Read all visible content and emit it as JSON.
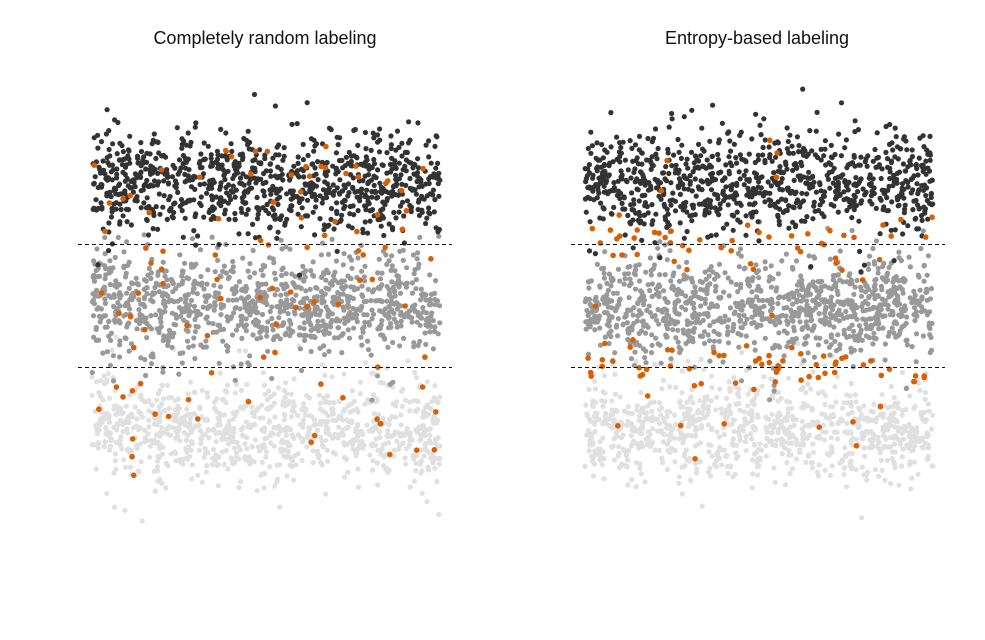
{
  "chart_data": [
    {
      "type": "scatter",
      "title": "Completely random labeling",
      "xlabel": "",
      "ylabel": "",
      "grid": false,
      "axes_visible": false,
      "legend": "none",
      "xlim": [
        0,
        1
      ],
      "ylim": [
        0,
        1
      ],
      "thresholds": [
        0.333,
        0.667
      ],
      "threshold_style": "dashed",
      "groups": [
        {
          "class": "top",
          "color": "#333333",
          "approx_count": 900,
          "y_range": [
            0.667,
            1.0
          ]
        },
        {
          "class": "middle",
          "color": "#999999",
          "approx_count": 1000,
          "y_range": [
            0.333,
            0.667
          ]
        },
        {
          "class": "bottom",
          "color": "#e0e0e0",
          "approx_count": 900,
          "y_range": [
            0.0,
            0.333
          ]
        }
      ],
      "labeled_points": {
        "color": "#d95f02",
        "approx_count": 100,
        "placement": "uniform",
        "sample": [
          {
            "x": 0.05,
            "y": 0.78
          },
          {
            "x": 0.11,
            "y": 0.8
          },
          {
            "x": 0.2,
            "y": 0.87
          },
          {
            "x": 0.31,
            "y": 0.85
          },
          {
            "x": 0.47,
            "y": 0.92
          },
          {
            "x": 0.6,
            "y": 0.81
          },
          {
            "x": 0.73,
            "y": 0.86
          },
          {
            "x": 0.85,
            "y": 0.84
          },
          {
            "x": 0.2,
            "y": 0.6
          },
          {
            "x": 0.37,
            "y": 0.52
          },
          {
            "x": 0.53,
            "y": 0.45
          },
          {
            "x": 0.77,
            "y": 0.57
          },
          {
            "x": 0.9,
            "y": 0.5
          },
          {
            "x": 0.07,
            "y": 0.28
          },
          {
            "x": 0.22,
            "y": 0.2
          },
          {
            "x": 0.45,
            "y": 0.24
          },
          {
            "x": 0.63,
            "y": 0.13
          },
          {
            "x": 0.83,
            "y": 0.18
          },
          {
            "x": 0.12,
            "y": 0.04
          },
          {
            "x": 0.95,
            "y": 0.28
          }
        ]
      }
    },
    {
      "type": "scatter",
      "title": "Entropy-based labeling",
      "xlabel": "",
      "ylabel": "",
      "grid": false,
      "axes_visible": false,
      "legend": "none",
      "xlim": [
        0,
        1
      ],
      "ylim": [
        0,
        1
      ],
      "thresholds": [
        0.333,
        0.667
      ],
      "threshold_style": "dashed",
      "groups": [
        {
          "class": "top",
          "color": "#333333",
          "approx_count": 900,
          "y_range": [
            0.667,
            1.0
          ]
        },
        {
          "class": "middle",
          "color": "#999999",
          "approx_count": 1000,
          "y_range": [
            0.333,
            0.667
          ]
        },
        {
          "class": "bottom",
          "color": "#e0e0e0",
          "approx_count": 900,
          "y_range": [
            0.0,
            0.333
          ]
        }
      ],
      "labeled_points": {
        "color": "#d95f02",
        "approx_count": 120,
        "placement": "concentrated near thresholds",
        "sample": [
          {
            "x": 0.1,
            "y": 0.69
          },
          {
            "x": 0.2,
            "y": 0.7
          },
          {
            "x": 0.33,
            "y": 0.68
          },
          {
            "x": 0.5,
            "y": 0.7
          },
          {
            "x": 0.68,
            "y": 0.67
          },
          {
            "x": 0.88,
            "y": 0.69
          },
          {
            "x": 0.15,
            "y": 0.64
          },
          {
            "x": 0.42,
            "y": 0.65
          },
          {
            "x": 0.72,
            "y": 0.63
          },
          {
            "x": 0.08,
            "y": 0.35
          },
          {
            "x": 0.3,
            "y": 0.33
          },
          {
            "x": 0.55,
            "y": 0.32
          },
          {
            "x": 0.8,
            "y": 0.34
          },
          {
            "x": 0.95,
            "y": 0.31
          },
          {
            "x": 0.25,
            "y": 0.38
          },
          {
            "x": 0.62,
            "y": 0.37
          },
          {
            "x": 0.55,
            "y": 0.85
          },
          {
            "x": 0.4,
            "y": 0.18
          },
          {
            "x": 0.78,
            "y": 0.12
          },
          {
            "x": 0.03,
            "y": 0.5
          }
        ]
      }
    }
  ]
}
